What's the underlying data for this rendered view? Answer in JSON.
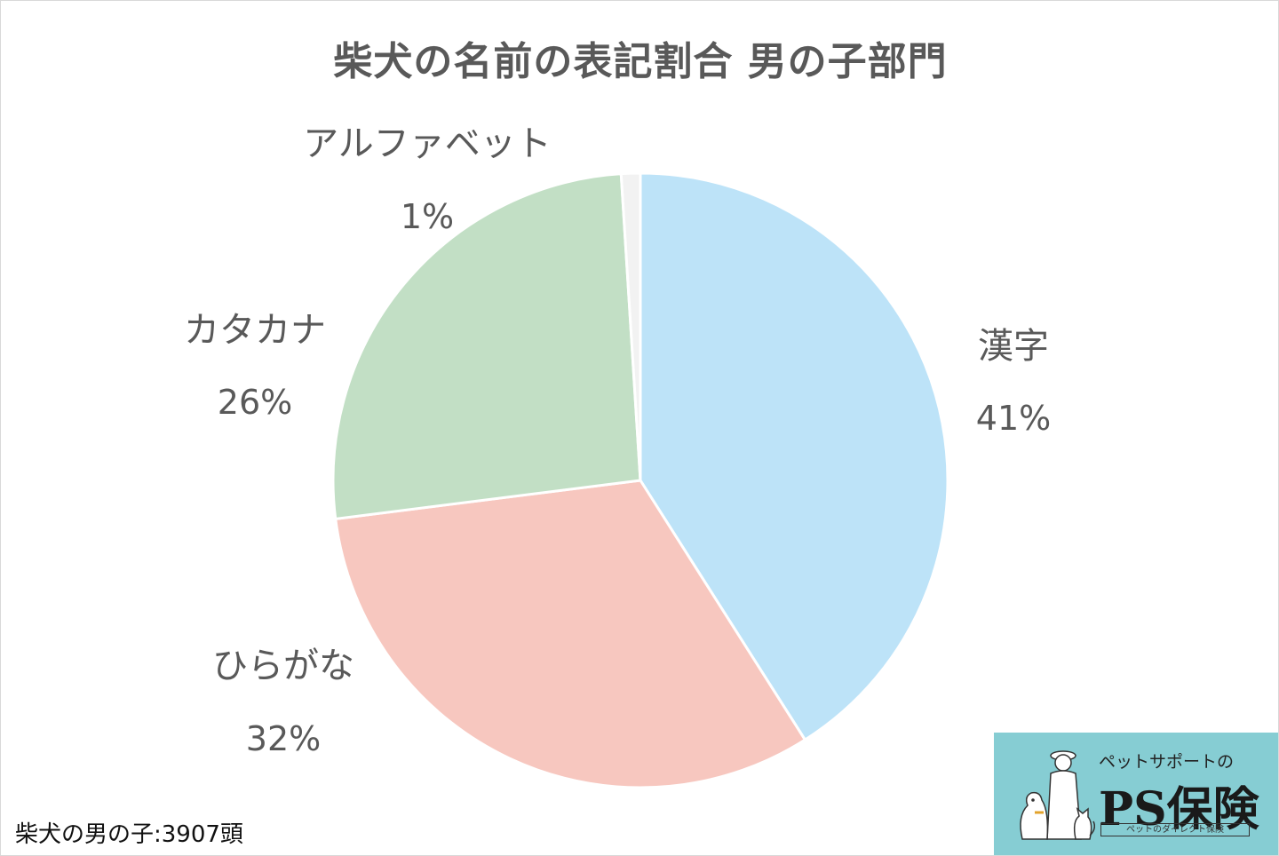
{
  "chart_data": {
    "type": "pie",
    "title": "柴犬の名前の表記割合 男の子部門",
    "slices": [
      {
        "label": "漢字",
        "pct_label": "41%",
        "value": 41,
        "color": "#bde3f8"
      },
      {
        "label": "ひらがな",
        "pct_label": "32%",
        "value": 32,
        "color": "#f7c7bf"
      },
      {
        "label": "カタカナ",
        "pct_label": "26%",
        "value": 26,
        "color": "#c2dfc5"
      },
      {
        "label": "アルファベット",
        "pct_label": "1%",
        "value": 1,
        "color": "#f2f2f2"
      }
    ],
    "start_angle": "12 o'clock",
    "direction": "clockwise"
  },
  "footnote": "柴犬の男の子:3907頭",
  "brand": {
    "tagline": "ペットサポートの",
    "name": "PS保険",
    "sub": "ペットのダイレクト保険",
    "bg_color": "#86cdd3"
  }
}
